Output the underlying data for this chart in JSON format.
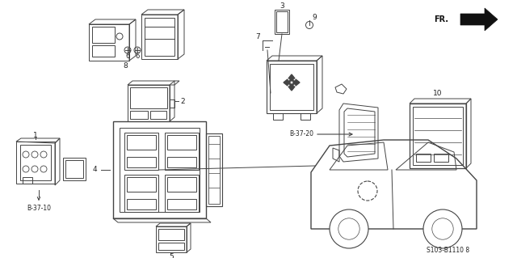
{
  "background_color": "#ffffff",
  "diagram_code": "S103-B1110 8",
  "fr_label": "FR.",
  "b37_10_label": "B-37-10",
  "b37_20_label": "B-37-20",
  "line_color": "#444444",
  "text_color": "#222222"
}
